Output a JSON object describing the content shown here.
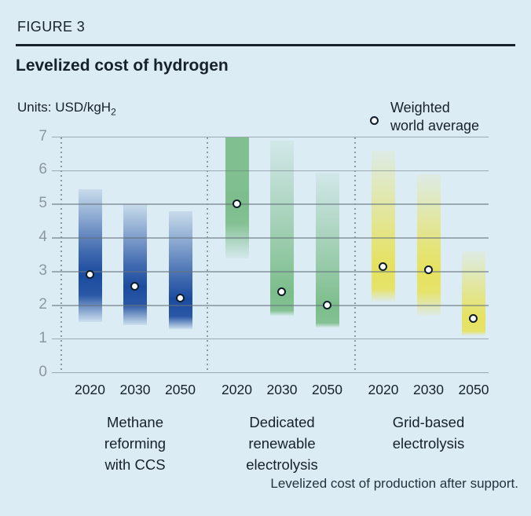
{
  "figure_label": "FIGURE 3",
  "units": {
    "label": "Units:",
    "value": "USD/kgH",
    "sub": "2"
  },
  "legend": {
    "line1": "Weighted",
    "line2": "world average"
  },
  "footnote": "Levelized cost of production after support.",
  "colors": {
    "background": "#dcecf4",
    "text_dark": "#16222b",
    "axis_gray": "#8b98a0",
    "gridline_gray": "#97a2a8",
    "blue": "#1b4b9f",
    "green": "#7cbd8b",
    "yellow": "#e6e25f",
    "marker_fill": "#fbfdfe",
    "marker_ring": "#0d1c28"
  },
  "chart_data": {
    "type": "bar",
    "subtype": "gradient-range-bars-with-average-points",
    "title": "Levelized cost of hydrogen",
    "ylabel": "USD/kgH2",
    "ylim": [
      0,
      7
    ],
    "yticks": [
      0,
      1,
      2,
      3,
      4,
      5,
      6,
      7
    ],
    "grid": true,
    "legend_position": "top-right",
    "point_series_name": "Weighted world average",
    "categories": [
      "2020",
      "2030",
      "2050"
    ],
    "groups": [
      {
        "label_lines": [
          "Methane",
          "reforming",
          "with CCS"
        ],
        "color_key": "blue",
        "bars": [
          {
            "year": "2020",
            "min": 1.5,
            "max": 5.45,
            "avg": 2.9
          },
          {
            "year": "2030",
            "min": 1.4,
            "max": 5.0,
            "avg": 2.55
          },
          {
            "year": "2050",
            "min": 1.3,
            "max": 4.8,
            "avg": 2.2
          }
        ]
      },
      {
        "label_lines": [
          "Dedicated",
          "renewable",
          "electrolysis"
        ],
        "color_key": "green",
        "bars": [
          {
            "year": "2020",
            "min": 3.4,
            "max": 7.0,
            "avg": 5.0,
            "clipped_top": true
          },
          {
            "year": "2030",
            "min": 1.7,
            "max": 6.9,
            "avg": 2.4
          },
          {
            "year": "2050",
            "min": 1.35,
            "max": 5.95,
            "avg": 2.0
          }
        ]
      },
      {
        "label_lines": [
          "Grid-based",
          "electrolysis"
        ],
        "color_key": "yellow",
        "bars": [
          {
            "year": "2020",
            "min": 2.1,
            "max": 6.6,
            "avg": 3.15
          },
          {
            "year": "2030",
            "min": 1.7,
            "max": 5.9,
            "avg": 3.05
          },
          {
            "year": "2050",
            "min": 1.1,
            "max": 3.6,
            "avg": 1.6
          }
        ]
      }
    ]
  }
}
